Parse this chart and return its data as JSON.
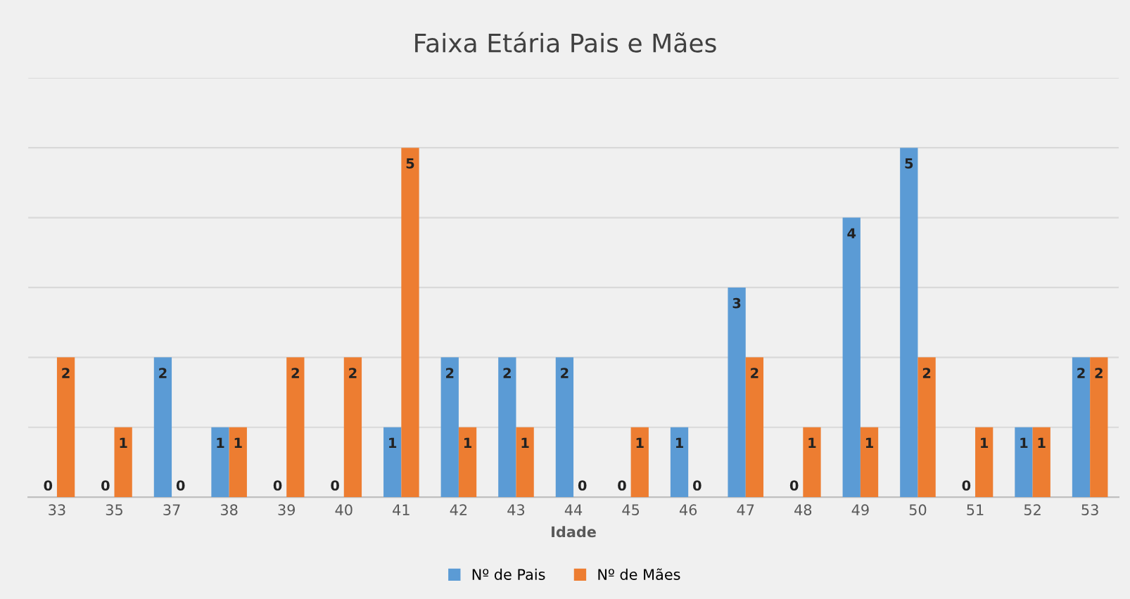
{
  "chart_data": {
    "type": "bar",
    "title": "Faixa Etária Pais e Mães",
    "xlabel": "Idade",
    "categories": [
      "33",
      "35",
      "37",
      "38",
      "39",
      "40",
      "41",
      "42",
      "43",
      "44",
      "45",
      "46",
      "47",
      "48",
      "49",
      "50",
      "51",
      "52",
      "53"
    ],
    "series": [
      {
        "name": "Nº de Pais",
        "color": "#5b9bd5",
        "values": [
          0,
          0,
          2,
          1,
          0,
          0,
          1,
          2,
          2,
          2,
          0,
          1,
          3,
          0,
          4,
          5,
          0,
          1,
          2
        ]
      },
      {
        "name": "Nº de Mães",
        "color": "#ed7d31",
        "values": [
          2,
          1,
          0,
          1,
          2,
          2,
          5,
          1,
          1,
          0,
          1,
          0,
          2,
          1,
          1,
          2,
          1,
          1,
          2
        ]
      }
    ],
    "ylim": [
      0,
      6
    ],
    "yticks": [
      {
        "value": 0,
        "label": null
      },
      {
        "value": 1,
        "label": null
      },
      {
        "value": 2,
        "label": null
      },
      {
        "value": 3,
        "label": null
      },
      {
        "value": 4,
        "label": null
      },
      {
        "value": 5,
        "label": null
      },
      {
        "value": 6,
        "label": null
      }
    ],
    "tick_labels": "x",
    "grid": "y",
    "legend": "bottom",
    "data_labels": true
  }
}
